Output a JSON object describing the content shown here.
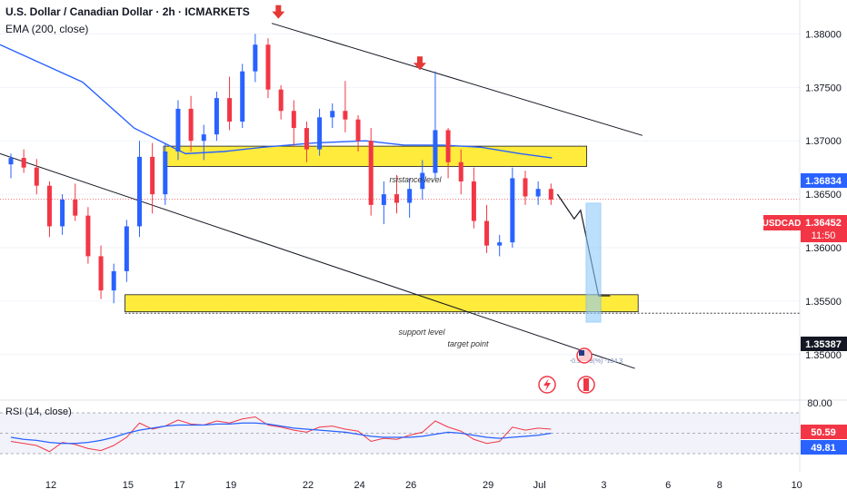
{
  "header": {
    "title": "U.S. Dollar / Canadian Dollar · 2h · ICMARKETS",
    "indicator": "EMA (200, close)"
  },
  "rsi_panel": {
    "label": "RSI (14, close)",
    "upper_level": "80.00"
  },
  "annotations": {
    "resistance": "rsistance level",
    "support": "support level",
    "target": "target point",
    "measure_readout": "-0.9 ... 9(%) -134.3"
  },
  "price_tags": {
    "symbol": "USDCAD",
    "price": "1.36452",
    "countdown": "11:50",
    "ema_value": "1.36834",
    "target_value": "1.35387",
    "rsi_value": "50.59",
    "rsi_ma_value": "49.81"
  },
  "colors": {
    "up": "#2962ff",
    "down": "#f23645",
    "ema": "#2962ff",
    "zone": "#ffeb3b",
    "arrow": "#e53935",
    "rsi": "#f23645",
    "rsi_ma": "#2962ff",
    "rsi_band": "#e8eaf6"
  },
  "chart_data": {
    "type": "candlestick",
    "x_ticks": [
      "12",
      "15",
      "17",
      "19",
      "22",
      "24",
      "26",
      "29",
      "Jul",
      "3",
      "6",
      "8",
      "10"
    ],
    "x_tick_pos": [
      0,
      6,
      10,
      14,
      20,
      24,
      28,
      34,
      38,
      43,
      48,
      52,
      58
    ],
    "y_ticks": [
      "1.35000",
      "1.35500",
      "1.36000",
      "1.36500",
      "1.37000",
      "1.37500",
      "1.38000"
    ],
    "ylim": [
      1.3465,
      1.3825
    ],
    "last_price": 1.36452,
    "ema_value": 1.36834,
    "target_price": 1.35387,
    "candles": [
      [
        1.3678,
        1.3688,
        1.3665,
        1.3684
      ],
      [
        1.3684,
        1.3692,
        1.367,
        1.3675
      ],
      [
        1.3675,
        1.3683,
        1.365,
        1.3658
      ],
      [
        1.3658,
        1.3662,
        1.361,
        1.362
      ],
      [
        1.362,
        1.365,
        1.3612,
        1.3645
      ],
      [
        1.3645,
        1.366,
        1.3625,
        1.363
      ],
      [
        1.363,
        1.3638,
        1.3585,
        1.3592
      ],
      [
        1.3592,
        1.3602,
        1.3552,
        1.356
      ],
      [
        1.356,
        1.3585,
        1.3548,
        1.3578
      ],
      [
        1.3578,
        1.3626,
        1.3568,
        1.362
      ],
      [
        1.362,
        1.37,
        1.361,
        1.3685
      ],
      [
        1.3685,
        1.3698,
        1.3632,
        1.365
      ],
      [
        1.365,
        1.3698,
        1.364,
        1.369
      ],
      [
        1.369,
        1.3738,
        1.3682,
        1.373
      ],
      [
        1.373,
        1.3742,
        1.369,
        1.37
      ],
      [
        1.37,
        1.3715,
        1.3682,
        1.3706
      ],
      [
        1.3706,
        1.3746,
        1.37,
        1.374
      ],
      [
        1.374,
        1.376,
        1.371,
        1.3718
      ],
      [
        1.3718,
        1.3772,
        1.3712,
        1.3765
      ],
      [
        1.3765,
        1.38,
        1.3755,
        1.379
      ],
      [
        1.379,
        1.3796,
        1.374,
        1.3748
      ],
      [
        1.3748,
        1.3752,
        1.372,
        1.3728
      ],
      [
        1.3728,
        1.3738,
        1.3695,
        1.3712
      ],
      [
        1.3712,
        1.3718,
        1.368,
        1.3692
      ],
      [
        1.3692,
        1.373,
        1.3686,
        1.3722
      ],
      [
        1.3722,
        1.3735,
        1.3712,
        1.3728
      ],
      [
        1.3728,
        1.3756,
        1.3708,
        1.372
      ],
      [
        1.372,
        1.3724,
        1.369,
        1.37
      ],
      [
        1.37,
        1.3712,
        1.363,
        1.364
      ],
      [
        1.364,
        1.3662,
        1.3622,
        1.365
      ],
      [
        1.365,
        1.3668,
        1.3632,
        1.3642
      ],
      [
        1.3642,
        1.3665,
        1.3628,
        1.3655
      ],
      [
        1.3655,
        1.3682,
        1.3645,
        1.367
      ],
      [
        1.367,
        1.3765,
        1.3665,
        1.371
      ],
      [
        1.371,
        1.3712,
        1.3665,
        1.368
      ],
      [
        1.368,
        1.3692,
        1.365,
        1.3662
      ],
      [
        1.3662,
        1.3675,
        1.3618,
        1.3625
      ],
      [
        1.3625,
        1.364,
        1.3595,
        1.3602
      ],
      [
        1.3602,
        1.3612,
        1.3592,
        1.3605
      ],
      [
        1.3605,
        1.3675,
        1.36,
        1.3665
      ],
      [
        1.3665,
        1.3672,
        1.364,
        1.3648
      ],
      [
        1.3648,
        1.3662,
        1.364,
        1.3655
      ],
      [
        1.3655,
        1.366,
        1.364,
        1.3645
      ]
    ],
    "ema": [
      [
        0,
        1.379
      ],
      [
        6,
        1.3755
      ],
      [
        10,
        1.3712
      ],
      [
        14,
        1.3688
      ],
      [
        17,
        1.369
      ],
      [
        20,
        1.3694
      ],
      [
        24,
        1.3698
      ],
      [
        28,
        1.37
      ],
      [
        31,
        1.3696
      ],
      [
        34,
        1.3696
      ],
      [
        37,
        1.3694
      ],
      [
        40,
        1.3688
      ],
      [
        42.5,
        1.3684
      ]
    ],
    "channel": {
      "upper": [
        [
          20,
          1.381
        ],
        [
          46,
          1.3705
        ]
      ],
      "lower": [
        [
          -1,
          1.3688
        ],
        [
          44,
          1.3487
        ]
      ]
    },
    "projection": [
      [
        42.5,
        1.365
      ],
      [
        43.8,
        1.3627
      ],
      [
        44.3,
        1.3635
      ],
      [
        45.7,
        1.3555
      ],
      [
        46.6,
        1.3555
      ]
    ],
    "zones": [
      {
        "label": "rsistance level",
        "x0": 12.3,
        "x1": 45.2,
        "y0": 1.3695,
        "y1": 1.3676
      },
      {
        "label": "support level",
        "x0": 9.3,
        "x1": 49.2,
        "y0": 1.3556,
        "y1": 1.354
      }
    ],
    "arrows": [
      [
        20.8,
        1.381
      ],
      [
        31.8,
        1.3762
      ]
    ],
    "rsi": [
      42,
      40,
      38,
      32,
      41,
      39,
      35,
      33,
      38,
      46,
      60,
      54,
      57,
      63,
      59,
      58,
      62,
      60,
      64,
      66,
      58,
      56,
      53,
      51,
      56,
      57,
      54,
      52,
      42,
      45,
      44,
      48,
      51,
      62,
      56,
      52,
      44,
      40,
      42,
      56,
      53,
      55,
      54
    ],
    "rsi_ma": [
      46,
      44,
      43,
      41,
      40,
      40,
      41,
      43,
      46,
      50,
      53,
      55,
      57,
      58,
      58,
      58,
      59,
      59,
      60,
      60,
      59,
      57,
      55,
      54,
      53,
      52,
      51,
      49,
      47,
      46,
      46,
      46,
      47,
      49,
      51,
      50,
      48,
      46,
      45,
      46,
      47,
      48,
      50
    ]
  }
}
